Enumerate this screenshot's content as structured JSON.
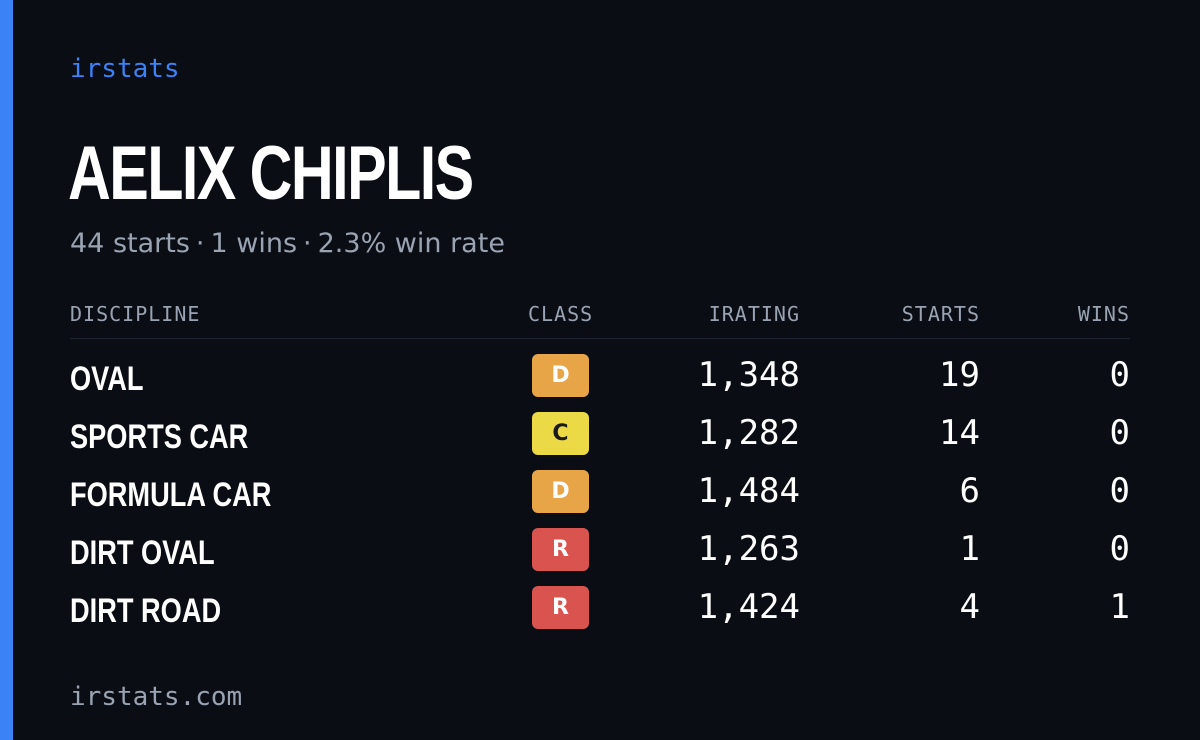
{
  "brand": "irstats",
  "driver": {
    "name": "AELIX CHIPLIS"
  },
  "summary": {
    "starts": "44 starts",
    "wins": "1 wins",
    "win_rate": "2.3% win rate",
    "separator": "·"
  },
  "table": {
    "headers": {
      "discipline": "DISCIPLINE",
      "class": "CLASS",
      "irating": "IRATING",
      "starts": "STARTS",
      "wins": "WINS"
    },
    "rows": [
      {
        "discipline": "OVAL",
        "class": "D",
        "irating": "1,348",
        "starts": "19",
        "wins": "0"
      },
      {
        "discipline": "SPORTS CAR",
        "class": "C",
        "irating": "1,282",
        "starts": "14",
        "wins": "0"
      },
      {
        "discipline": "FORMULA CAR",
        "class": "D",
        "irating": "1,484",
        "starts": "6",
        "wins": "0"
      },
      {
        "discipline": "DIRT OVAL",
        "class": "R",
        "irating": "1,263",
        "starts": "1",
        "wins": "0"
      },
      {
        "discipline": "DIRT ROAD",
        "class": "R",
        "irating": "1,424",
        "starts": "4",
        "wins": "1"
      }
    ]
  },
  "footer": "irstats.com",
  "colors": {
    "accent": "#3b82f6",
    "background": "#0a0d14",
    "class_D": "#e8a548",
    "class_C": "#ebd945",
    "class_R": "#d9534f",
    "muted_text": "#9aa3b2"
  }
}
